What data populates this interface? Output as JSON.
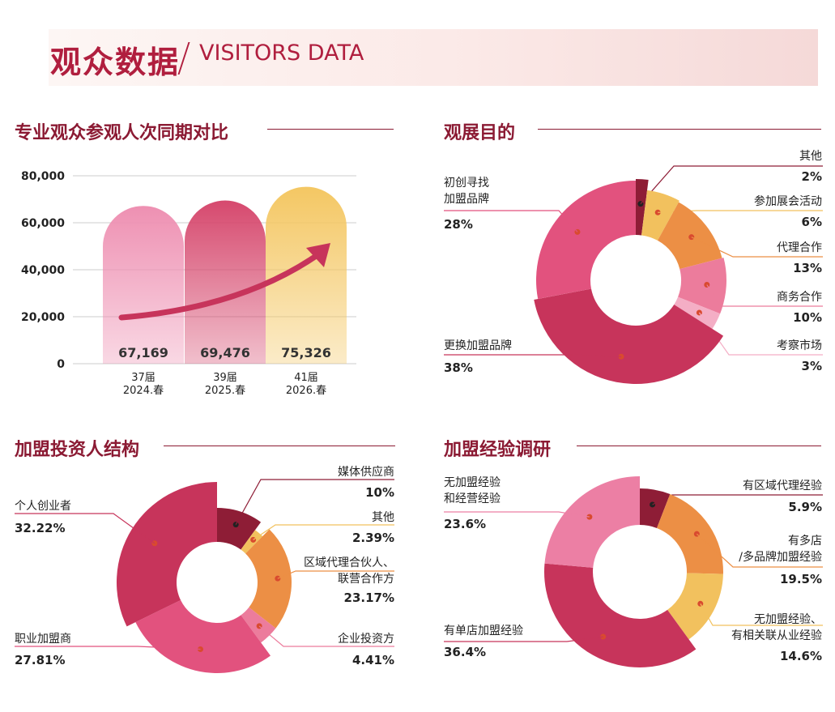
{
  "header": {
    "title_cn": "观众数据",
    "title_en": "VISITORS DATA"
  },
  "sections": {
    "s1": "专业观众参观人次同期对比",
    "s2": "观展目的",
    "s3": "加盟投资人结构",
    "s4": "加盟经验调研"
  },
  "chart_data": [
    {
      "type": "bar",
      "title": "专业观众参观人次同期对比",
      "categories": [
        "37届\n2024.春",
        "39届\n2025.春",
        "41届\n2026.春"
      ],
      "values": [
        67169,
        69476,
        75326
      ],
      "value_labels": [
        "67,169",
        "69,476",
        "75,326"
      ],
      "ylim": [
        0,
        80000
      ],
      "yticks": [
        "0",
        "20,000",
        "40,000",
        "60,000",
        "80,000"
      ],
      "colors": [
        "#ee90b2",
        "#d6496e",
        "#f4c763"
      ]
    },
    {
      "type": "pie",
      "title": "观展目的",
      "slices": [
        {
          "label": "其他",
          "pct": "2%",
          "value": 2,
          "color": "#8e1d36"
        },
        {
          "label": "参加展会活动",
          "pct": "6%",
          "value": 6,
          "color": "#f2c15e"
        },
        {
          "label": "代理合作",
          "pct": "13%",
          "value": 13,
          "color": "#ec8f45"
        },
        {
          "label": "商务合作",
          "pct": "10%",
          "value": 10,
          "color": "#ec7c9c"
        },
        {
          "label": "考察市场",
          "pct": "3%",
          "value": 3,
          "color": "#f4aec5"
        },
        {
          "label": "更换加盟品牌",
          "pct": "38%",
          "value": 38,
          "color": "#c7345b"
        },
        {
          "label": "初创寻找\n加盟品牌",
          "pct": "28%",
          "value": 28,
          "color": "#e2527e"
        }
      ]
    },
    {
      "type": "pie",
      "title": "加盟投资人结构",
      "slices": [
        {
          "label": "媒体供应商",
          "pct": "10%",
          "value": 10,
          "color": "#8e1d36"
        },
        {
          "label": "其他",
          "pct": "2.39%",
          "value": 2.39,
          "color": "#f2c15e"
        },
        {
          "label": "区域代理合伙人、\n联营合作方",
          "pct": "23.17%",
          "value": 23.17,
          "color": "#ec8f45"
        },
        {
          "label": "企业投资方",
          "pct": "4.41%",
          "value": 4.41,
          "color": "#ec7c9c"
        },
        {
          "label": "职业加盟商",
          "pct": "27.81%",
          "value": 27.81,
          "color": "#e2527e"
        },
        {
          "label": "个人创业者",
          "pct": "32.22%",
          "value": 32.22,
          "color": "#c7345b"
        }
      ]
    },
    {
      "type": "pie",
      "title": "加盟经验调研",
      "slices": [
        {
          "label": "有区域代理经验",
          "pct": "5.9%",
          "value": 5.9,
          "color": "#8e1d36"
        },
        {
          "label": "有多店\n/多品牌加盟经验",
          "pct": "19.5%",
          "value": 19.5,
          "color": "#ec8f45"
        },
        {
          "label": "无加盟经验、\n有相关联从业经验",
          "pct": "14.6%",
          "value": 14.6,
          "color": "#f2c15e"
        },
        {
          "label": "有单店加盟经验",
          "pct": "36.4%",
          "value": 36.4,
          "color": "#c7345b"
        },
        {
          "label": "无加盟经验\n和经营经验",
          "pct": "23.6%",
          "value": 23.6,
          "color": "#ec7fa4"
        }
      ]
    }
  ]
}
